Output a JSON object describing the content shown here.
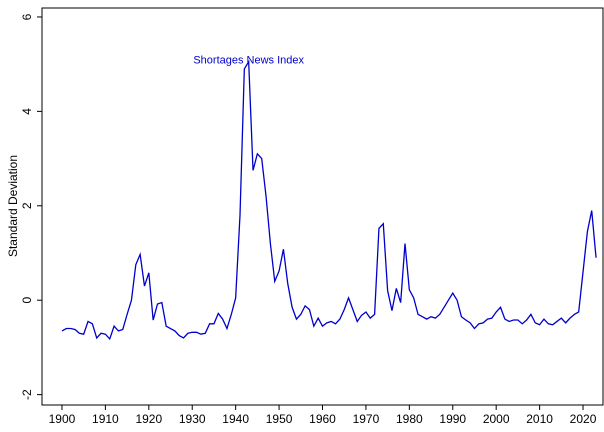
{
  "chart_data": {
    "type": "line",
    "ylabel": "Standard Deviation",
    "annotations": [
      {
        "text": "Shortages News Index",
        "x": 1943,
        "y": 5.1
      }
    ],
    "x": [
      1900,
      1901,
      1902,
      1903,
      1904,
      1905,
      1906,
      1907,
      1908,
      1909,
      1910,
      1911,
      1912,
      1913,
      1914,
      1915,
      1916,
      1917,
      1918,
      1919,
      1920,
      1921,
      1922,
      1923,
      1924,
      1925,
      1926,
      1927,
      1928,
      1929,
      1930,
      1931,
      1932,
      1933,
      1934,
      1935,
      1936,
      1937,
      1938,
      1939,
      1940,
      1941,
      1942,
      1943,
      1944,
      1945,
      1946,
      1947,
      1948,
      1949,
      1950,
      1951,
      1952,
      1953,
      1954,
      1955,
      1956,
      1957,
      1958,
      1959,
      1960,
      1961,
      1962,
      1963,
      1964,
      1965,
      1966,
      1967,
      1968,
      1969,
      1970,
      1971,
      1972,
      1973,
      1974,
      1975,
      1976,
      1977,
      1978,
      1979,
      1980,
      1981,
      1982,
      1983,
      1984,
      1985,
      1986,
      1987,
      1988,
      1989,
      1990,
      1991,
      1992,
      1993,
      1994,
      1995,
      1996,
      1997,
      1998,
      1999,
      2000,
      2001,
      2002,
      2003,
      2004,
      2005,
      2006,
      2007,
      2008,
      2009,
      2010,
      2011,
      2012,
      2013,
      2014,
      2015,
      2016,
      2017,
      2018,
      2019,
      2020,
      2021,
      2022,
      2023
    ],
    "series": [
      {
        "name": "Shortages News Index",
        "color": "#0000cc",
        "values": [
          -0.65,
          -0.6,
          -0.6,
          -0.62,
          -0.7,
          -0.72,
          -0.45,
          -0.5,
          -0.8,
          -0.7,
          -0.72,
          -0.82,
          -0.55,
          -0.65,
          -0.62,
          -0.3,
          0.0,
          0.75,
          0.97,
          0.3,
          0.58,
          -0.42,
          -0.08,
          -0.05,
          -0.55,
          -0.6,
          -0.65,
          -0.75,
          -0.8,
          -0.7,
          -0.68,
          -0.68,
          -0.72,
          -0.7,
          -0.5,
          -0.5,
          -0.28,
          -0.4,
          -0.6,
          -0.3,
          0.05,
          1.8,
          4.9,
          5.05,
          2.75,
          3.1,
          3.0,
          2.2,
          1.2,
          0.4,
          0.62,
          1.08,
          0.35,
          -0.15,
          -0.4,
          -0.3,
          -0.12,
          -0.2,
          -0.55,
          -0.38,
          -0.55,
          -0.48,
          -0.45,
          -0.5,
          -0.4,
          -0.2,
          0.05,
          -0.2,
          -0.45,
          -0.32,
          -0.25,
          -0.38,
          -0.3,
          1.52,
          1.62,
          0.2,
          -0.22,
          0.25,
          -0.05,
          1.2,
          0.22,
          0.05,
          -0.3,
          -0.35,
          -0.4,
          -0.35,
          -0.38,
          -0.3,
          -0.15,
          0.0,
          0.15,
          0.0,
          -0.35,
          -0.42,
          -0.48,
          -0.6,
          -0.5,
          -0.48,
          -0.4,
          -0.38,
          -0.25,
          -0.15,
          -0.4,
          -0.45,
          -0.42,
          -0.42,
          -0.5,
          -0.42,
          -0.3,
          -0.48,
          -0.52,
          -0.4,
          -0.5,
          -0.52,
          -0.45,
          -0.38,
          -0.48,
          -0.38,
          -0.3,
          -0.25,
          0.6,
          1.45,
          1.9,
          0.9
        ]
      }
    ],
    "xlim": [
      1895.4,
      2024.6
    ],
    "ylim": [
      -2.22,
      6.19
    ],
    "xticks": [
      1900,
      1910,
      1920,
      1930,
      1940,
      1950,
      1960,
      1970,
      1980,
      1990,
      2000,
      2010,
      2020
    ],
    "yticks": [
      -2,
      0,
      2,
      4,
      6
    ]
  }
}
